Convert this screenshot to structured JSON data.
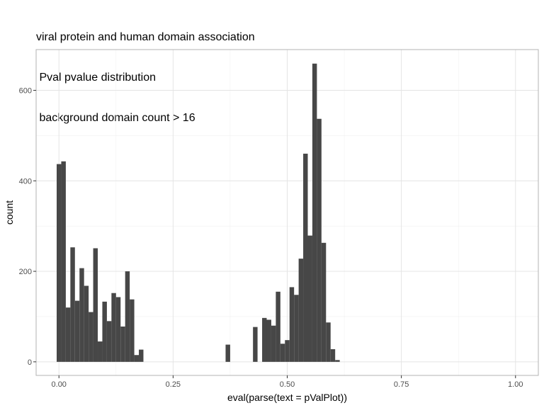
{
  "chart_data": {
    "type": "bar",
    "title": [
      "viral protein and human domain association",
      " Pval pvalue distribution",
      " background domain count > 16"
    ],
    "xlabel": "eval(parse(text = pValPlot))",
    "ylabel": "count",
    "xlim": [
      -0.05,
      1.05
    ],
    "ylim": [
      -30,
      690
    ],
    "x_ticks": [
      0.0,
      0.25,
      0.5,
      0.75,
      1.0
    ],
    "x_tick_labels": [
      "0.00",
      "0.25",
      "0.50",
      "0.75",
      "1.00"
    ],
    "y_ticks": [
      0,
      200,
      400,
      600
    ],
    "y_tick_labels": [
      "0",
      "200",
      "400",
      "600"
    ],
    "bin_width": 0.01,
    "bin_centers": [
      0.0,
      0.01,
      0.02,
      0.03,
      0.04,
      0.05,
      0.06,
      0.07,
      0.08,
      0.09,
      0.1,
      0.11,
      0.12,
      0.13,
      0.14,
      0.15,
      0.16,
      0.17,
      0.18,
      0.19,
      0.2,
      0.21,
      0.22,
      0.23,
      0.24,
      0.25,
      0.26,
      0.27,
      0.28,
      0.29,
      0.3,
      0.31,
      0.32,
      0.33,
      0.34,
      0.35,
      0.36,
      0.37,
      0.38,
      0.39,
      0.4,
      0.41,
      0.42,
      0.43,
      0.44,
      0.45,
      0.46,
      0.47,
      0.48,
      0.49,
      0.5,
      0.51,
      0.52,
      0.53,
      0.54,
      0.55,
      0.56,
      0.57,
      0.58,
      0.59,
      0.6,
      0.61
    ],
    "values": [
      437,
      443,
      120,
      253,
      135,
      207,
      168,
      110,
      251,
      45,
      133,
      90,
      152,
      143,
      78,
      200,
      138,
      15,
      27,
      0,
      0,
      0,
      0,
      0,
      0,
      0,
      0,
      0,
      0,
      0,
      0,
      0,
      0,
      0,
      0,
      0,
      0,
      38,
      0,
      0,
      0,
      0,
      0,
      77,
      0,
      97,
      93,
      80,
      155,
      40,
      48,
      165,
      148,
      228,
      460,
      279,
      659,
      537,
      263,
      87,
      28,
      4
    ],
    "bar_color": "#474747",
    "grid": true,
    "legend": "none"
  }
}
